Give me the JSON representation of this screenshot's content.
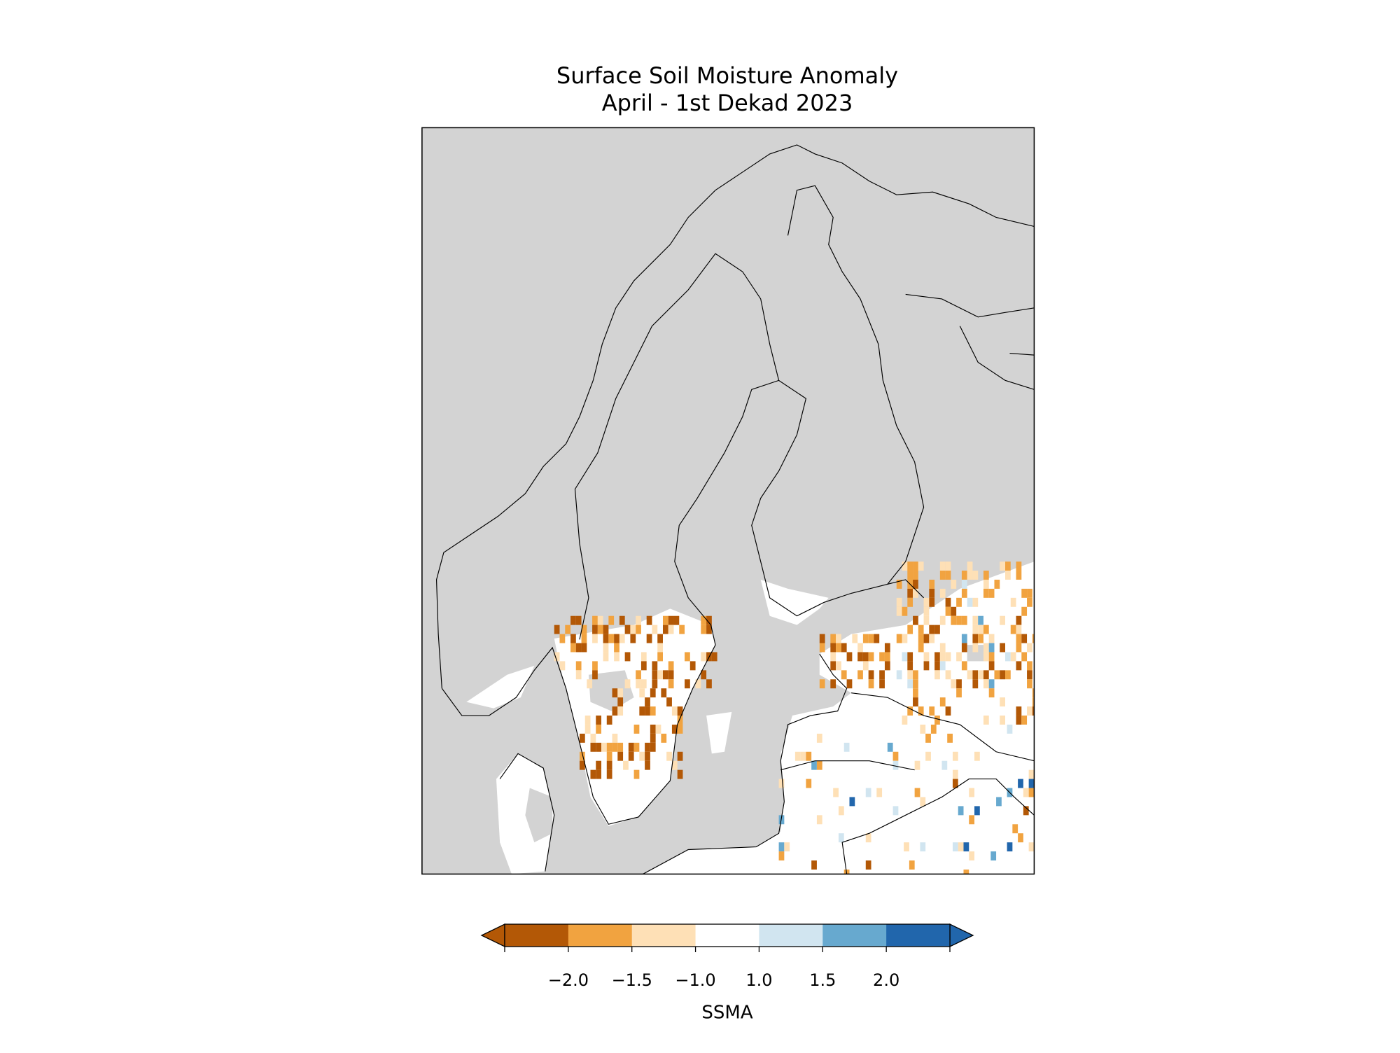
{
  "chart_data": {
    "type": "map",
    "title": "Surface Soil Moisture Anomaly",
    "subtitle": "April - 1st Dekad 2023",
    "background_color": "#d3d3d3",
    "colorbar": {
      "label": "SSMA",
      "extend": "both",
      "ticks": [
        {
          "value": -2.0,
          "label": "−2.0"
        },
        {
          "value": -1.5,
          "label": "−1.5"
        },
        {
          "value": -1.0,
          "label": "−1.0"
        },
        {
          "value": 1.0,
          "label": "1.0"
        },
        {
          "value": 1.5,
          "label": "1.5"
        },
        {
          "value": 2.0,
          "label": "2.0"
        }
      ],
      "colors": [
        "#b35806",
        "#f1a340",
        "#fee0b6",
        "#ffffff",
        "#d1e5f0",
        "#67a9cf",
        "#2166ac"
      ]
    }
  }
}
